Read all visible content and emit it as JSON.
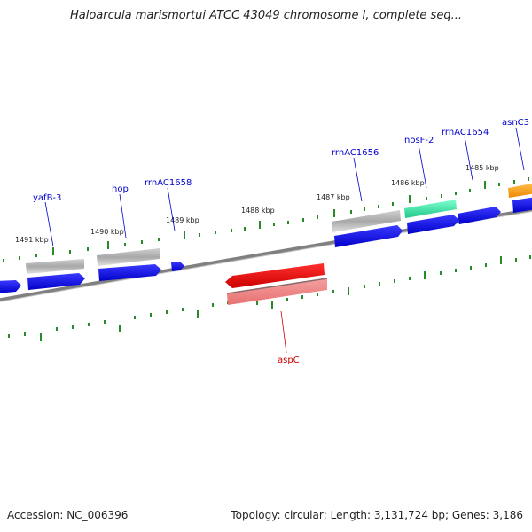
{
  "title": "Haloarcula marismortui ATCC 43049 chromosome I, complete seq...",
  "footer": {
    "accession": "Accession: NC_006396",
    "topology": "Topology: circular; Length: 3,131,724 bp; Genes: 3,186"
  },
  "kbp_labels": [
    "1491 kbp",
    "1490 kbp",
    "1489 kbp",
    "1488 kbp",
    "1487 kbp",
    "1486 kbp",
    "1485 kbp"
  ],
  "gene_labels": [
    "yafB-3",
    "hop",
    "rrnAC1658",
    "rrnAC1656",
    "nosF-2",
    "rrnAC1654",
    "asnC3",
    "aspC"
  ],
  "colors": {
    "backbone": "#808080",
    "tick": "#2a8a2a",
    "gene_blue": "#0000ee",
    "gene_grey": "#a0a0a0",
    "gene_green": "#33dd99",
    "gene_orange": "#ff9900",
    "gene_red": "#ee0000",
    "gene_pink": "#f08080",
    "label_blue": "#0000cc",
    "label_red": "#cc0000"
  }
}
